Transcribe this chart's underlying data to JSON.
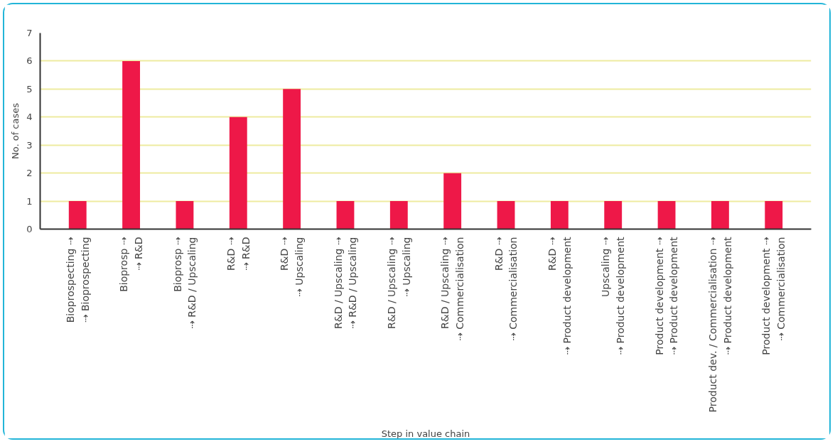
{
  "chart_data": {
    "type": "bar",
    "xlabel": "Step in value chain",
    "ylabel": "No. of cases",
    "categories": [
      "Bioprospecting ⇢\n⇢ Bioprospecting",
      "Bioprosp ⇢\n⇢ R&D",
      "Bioprosp ⇢\n⇢ R&D / Upscaling",
      "R&D ⇢\n⇢ R&D",
      "R&D ⇢\n⇢ Upscaling",
      "R&D / Upscaling ⇢\n⇢ R&D / Upscaling",
      "R&D / Upscaling ⇢\n⇢ Upscaling",
      "R&D / Upscaling ⇢\n⇢ Commercialisation",
      "R&D ⇢\n⇢ Commercialisation",
      "R&D ⇢\n⇢ Product development",
      "Upscaling ⇢\n⇢ Product development",
      "Product development ⇢\n⇢ Product development",
      "Product dev. / Commercialisation ⇢\n⇢ Product development",
      "Product development ⇢\n⇢ Commercialisation"
    ],
    "values": [
      1,
      6,
      1,
      4,
      5,
      1,
      1,
      2,
      1,
      1,
      1,
      1,
      1,
      1
    ],
    "color": "#ee1848",
    "ylim": [
      0,
      7
    ],
    "yticks": [
      0,
      1,
      2,
      3,
      4,
      5,
      6,
      7
    ],
    "grid": "y"
  }
}
